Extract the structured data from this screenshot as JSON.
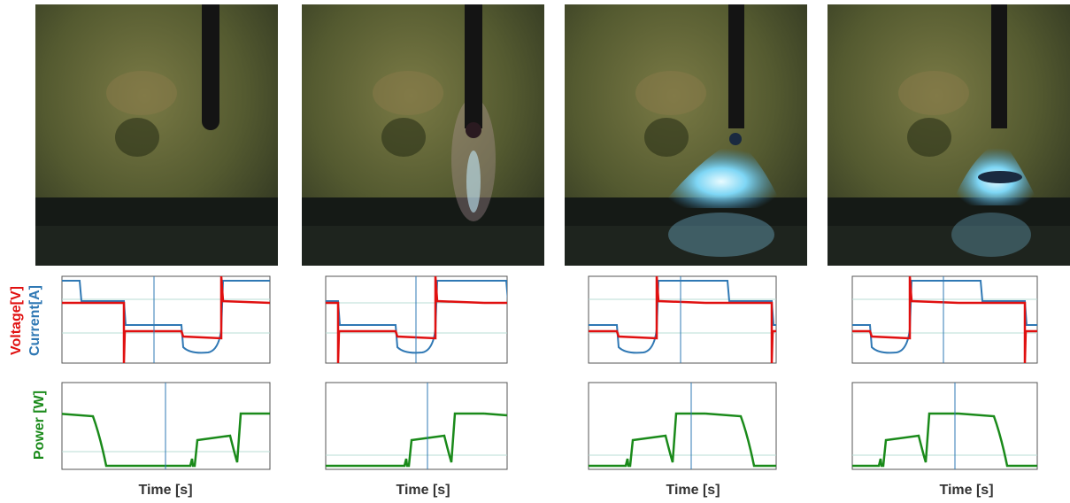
{
  "labels": {
    "voltage": "Voltage[V]",
    "current": "Current[A]",
    "power": "Power [W]"
  },
  "panels": [
    {
      "x_label": "Time [s]"
    },
    {
      "x_label": "Time [s]"
    },
    {
      "x_label": "Time [s]"
    },
    {
      "x_label": "Time [s]"
    }
  ]
}
